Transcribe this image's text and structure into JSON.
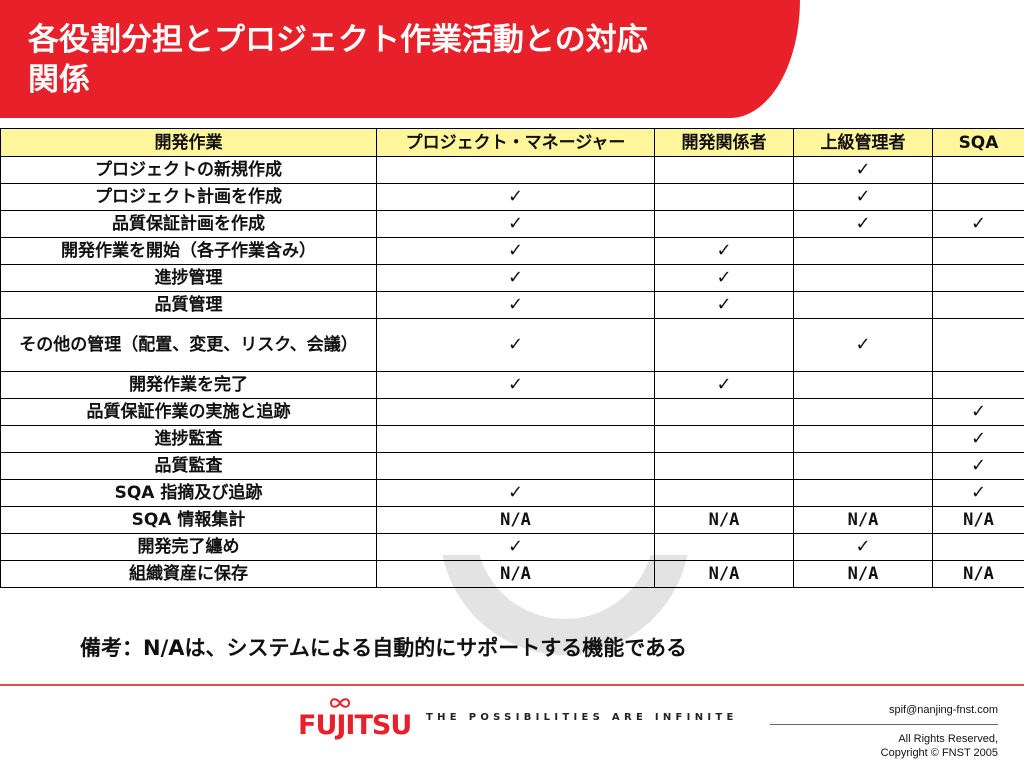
{
  "title": {
    "line1": "各役割分担とプロジェクト作業活動との対応",
    "line2": "関係"
  },
  "table": {
    "headers": [
      "開発作業",
      "プロジェクト・マネージャー",
      "開発関係者",
      "上級管理者",
      "SQA"
    ],
    "check_symbol": "✓",
    "rows": [
      {
        "task": "プロジェクトの新規作成",
        "cells": [
          "",
          "",
          "✓",
          ""
        ]
      },
      {
        "task": "プロジェクト計画を作成",
        "cells": [
          "✓",
          "",
          "✓",
          ""
        ]
      },
      {
        "task": "品質保証計画を作成",
        "cells": [
          "✓",
          "",
          "✓",
          "✓"
        ]
      },
      {
        "task": "開発作業を開始（各子作業含み）",
        "cells": [
          "✓",
          "✓",
          "",
          ""
        ]
      },
      {
        "task": "進捗管理",
        "cells": [
          "✓",
          "✓",
          "",
          ""
        ]
      },
      {
        "task": "品質管理",
        "cells": [
          "✓",
          "✓",
          "",
          ""
        ]
      },
      {
        "task": "その他の管理（配置、変更、リスク、会議）",
        "cells": [
          "✓",
          "",
          "✓",
          ""
        ]
      },
      {
        "task": "開発作業を完了",
        "cells": [
          "✓",
          "✓",
          "",
          ""
        ]
      },
      {
        "task": "品質保証作業の実施と追跡",
        "cells": [
          "",
          "",
          "",
          "✓"
        ]
      },
      {
        "task": "進捗監査",
        "cells": [
          "",
          "",
          "",
          "✓"
        ]
      },
      {
        "task": "品質監査",
        "cells": [
          "",
          "",
          "",
          "✓"
        ]
      },
      {
        "task": "SQA 指摘及び追跡",
        "cells": [
          "✓",
          "",
          "",
          "✓"
        ]
      },
      {
        "task": "SQA 情報集計",
        "cells": [
          "N/A",
          "N/A",
          "N/A",
          "N/A"
        ]
      },
      {
        "task": "開発完了纏め",
        "cells": [
          "✓",
          "",
          "✓",
          ""
        ]
      },
      {
        "task": "組織資産に保存",
        "cells": [
          "N/A",
          "N/A",
          "N/A",
          "N/A"
        ]
      }
    ]
  },
  "note": "備考：N/Aは、システムによる自動的にサポートする機能である",
  "footer": {
    "logo_text": "FUJITSU",
    "tagline": "THE POSSIBILITIES ARE INFINITE",
    "email": "spif@nanjing-fnst.com",
    "rights": "All Rights Reserved,",
    "copyright": "Copyright © FNST 2005"
  },
  "colors": {
    "title_banner": "#e8202a",
    "header_fill": "#fff59a",
    "logo_red": "#e8202a"
  }
}
